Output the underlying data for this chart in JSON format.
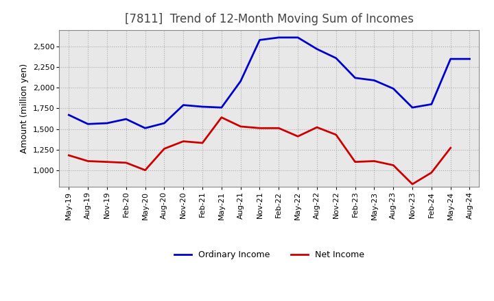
{
  "title": "[7811]  Trend of 12-Month Moving Sum of Incomes",
  "ylabel": "Amount (million yen)",
  "background_color": "#ffffff",
  "plot_bg_color": "#e8e8e8",
  "grid_color": "#aaaaaa",
  "x_labels": [
    "May-19",
    "Aug-19",
    "Nov-19",
    "Feb-20",
    "May-20",
    "Aug-20",
    "Nov-20",
    "Feb-21",
    "May-21",
    "Aug-21",
    "Nov-21",
    "Feb-22",
    "May-22",
    "Aug-22",
    "Nov-22",
    "Feb-23",
    "May-23",
    "Aug-23",
    "Nov-23",
    "Feb-24",
    "May-24",
    "Aug-24"
  ],
  "ordinary_income": [
    1670,
    1560,
    1570,
    1620,
    1510,
    1570,
    1790,
    1770,
    1760,
    2080,
    2580,
    2610,
    2610,
    2470,
    2360,
    2120,
    2090,
    1990,
    1760,
    1800,
    2350,
    2350
  ],
  "net_income": [
    1180,
    1110,
    1100,
    1090,
    1000,
    1260,
    1350,
    1330,
    1640,
    1530,
    1510,
    1510,
    1410,
    1520,
    1430,
    1100,
    1110,
    1060,
    830,
    970,
    1270,
    null
  ],
  "ordinary_color": "#0000cc",
  "net_color": "#cc0000",
  "ylim_min": 800,
  "ylim_max": 2700,
  "yticks": [
    1000,
    1250,
    1500,
    1750,
    2000,
    2250,
    2500
  ],
  "legend_labels": [
    "Ordinary Income",
    "Net Income"
  ],
  "line_width": 2.0,
  "title_fontsize": 12,
  "axis_fontsize": 8,
  "ylabel_fontsize": 9
}
